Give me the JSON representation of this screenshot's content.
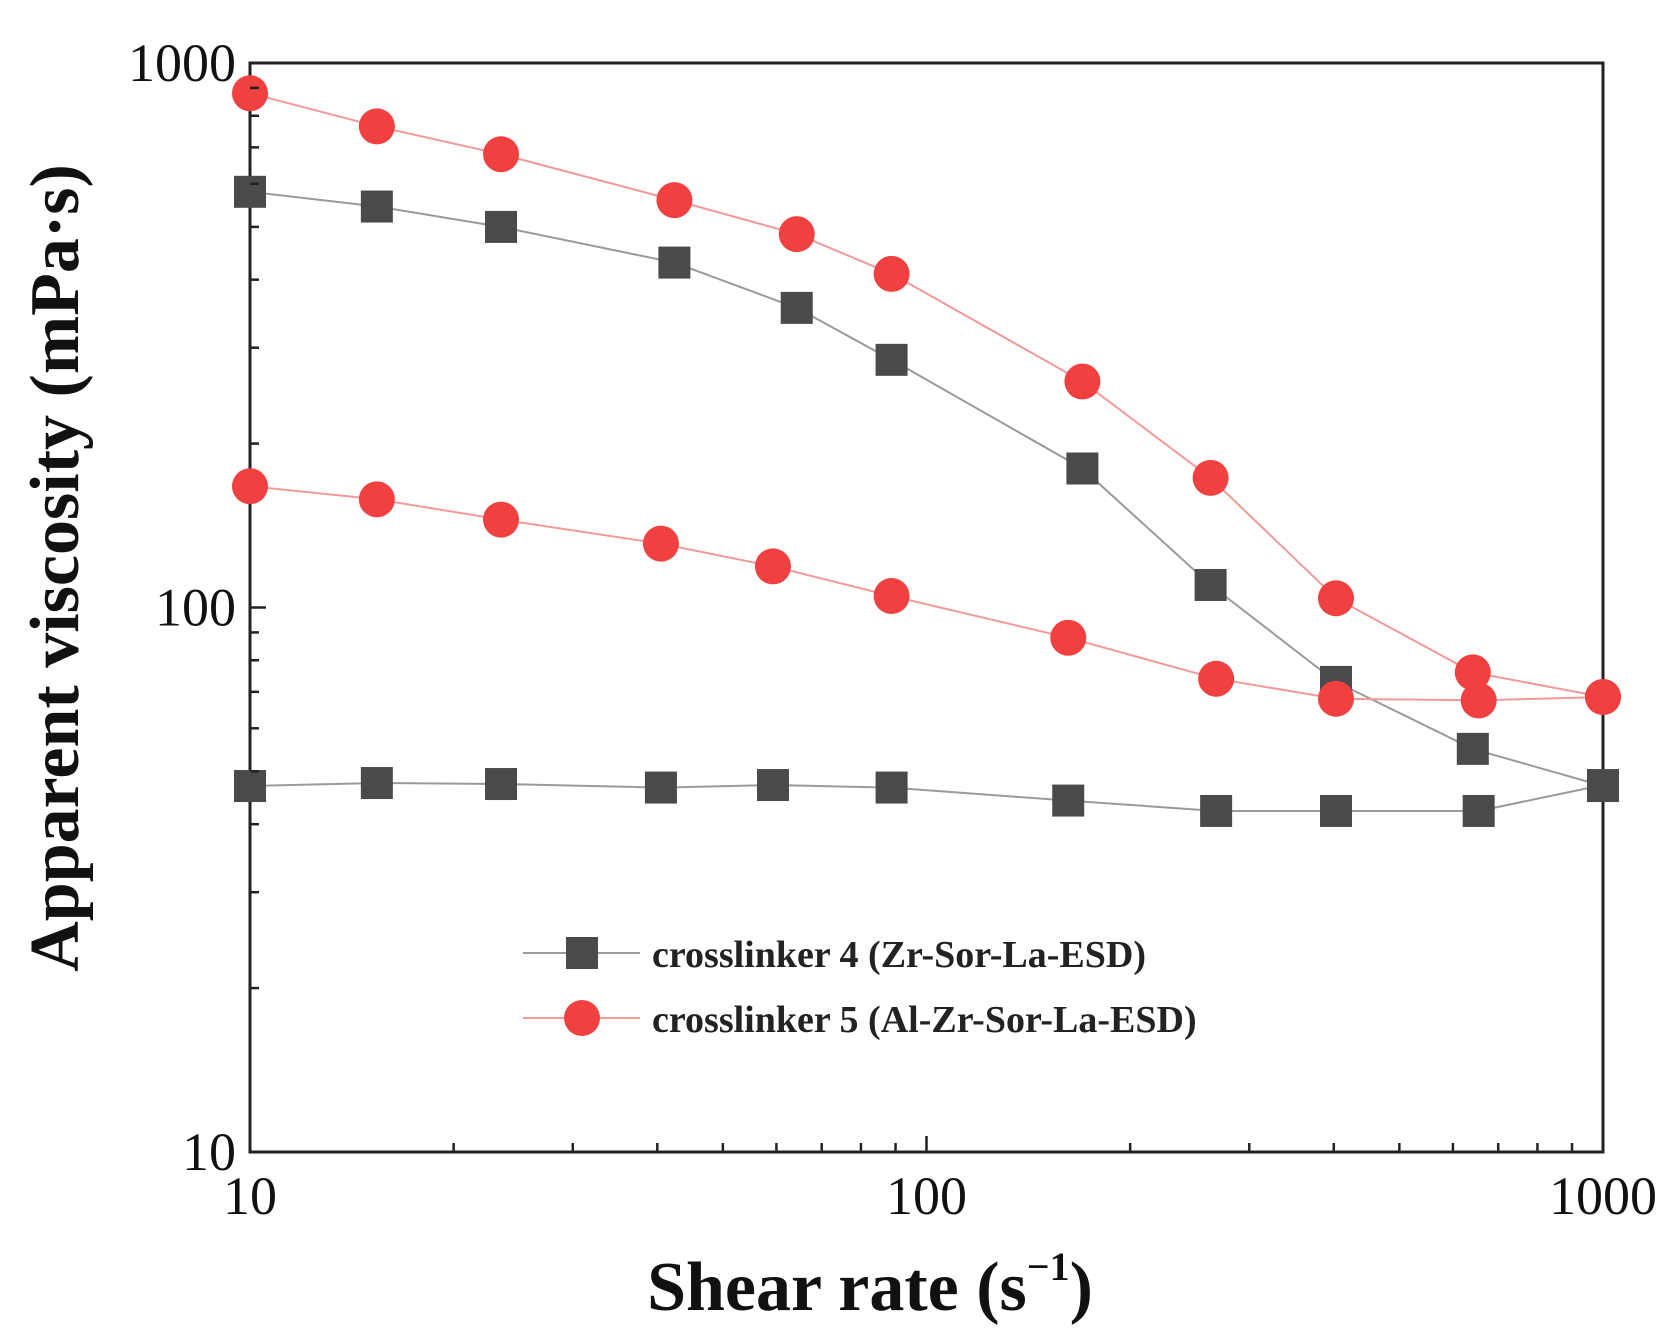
{
  "chart_data": {
    "type": "line",
    "title": "",
    "xlabel": "Shear rate (s",
    "xlabel_sup": "−1",
    "xlabel_close": ")",
    "ylabel": "Apparent viscosity (mPa·s)",
    "xscale": "log",
    "yscale": "log",
    "xlim": [
      10,
      1000
    ],
    "ylim": [
      10,
      1000
    ],
    "x_tick_labels": [
      "10",
      "100",
      "1000"
    ],
    "y_tick_labels": [
      "10",
      "100",
      "1000"
    ],
    "legend_position": "lower-center",
    "series": [
      {
        "name": "crosslinker 4 (Zr-Sor-La-ESD)",
        "legend_label": "crosslinker 4 (Zr-Sor-La-ESD)",
        "marker": "square",
        "color": "#4a4a4a",
        "line_color": "#9a9a9a",
        "x": [
          10,
          15.4,
          23.5,
          42.4,
          64.3,
          88.8,
          170,
          263,
          403,
          642,
          1000
        ],
        "y": [
          580,
          545,
          500,
          430,
          355,
          285,
          180,
          110,
          73,
          55,
          47
        ]
      },
      {
        "name": "crosslinker 4 (Zr-Sor-La-ESD) low",
        "marker": "square",
        "color": "#4a4a4a",
        "line_color": "#9a9a9a",
        "x": [
          10,
          15.4,
          23.5,
          40.5,
          59.3,
          88.8,
          162,
          268,
          403,
          655,
          1000
        ],
        "y": [
          47,
          47.6,
          47.4,
          46.7,
          47.2,
          46.7,
          44.2,
          42.3,
          42.3,
          42.3,
          47.2
        ]
      },
      {
        "name": "crosslinker 5 (Al-Zr-Sor-La-ESD)",
        "legend_label": "crosslinker 5 (Al-Zr-Sor-La-ESD)",
        "marker": "circle",
        "color": "#f04040",
        "line_color": "#f29a9a",
        "x": [
          10,
          15.4,
          23.5,
          42.4,
          64.3,
          88.8,
          170,
          263,
          403,
          642,
          1000
        ],
        "y": [
          880,
          765,
          680,
          560,
          485,
          410,
          260,
          173,
          104,
          76,
          68.5
        ]
      },
      {
        "name": "crosslinker 5 (Al-Zr-Sor-La-ESD) low",
        "marker": "circle",
        "color": "#f04040",
        "line_color": "#f29a9a",
        "x": [
          10,
          15.4,
          23.5,
          40.5,
          59.3,
          88.8,
          162,
          268,
          403,
          655,
          1000
        ],
        "y": [
          167,
          158,
          145,
          131,
          119,
          105,
          88,
          74,
          68,
          67.5,
          68.5
        ]
      }
    ]
  }
}
